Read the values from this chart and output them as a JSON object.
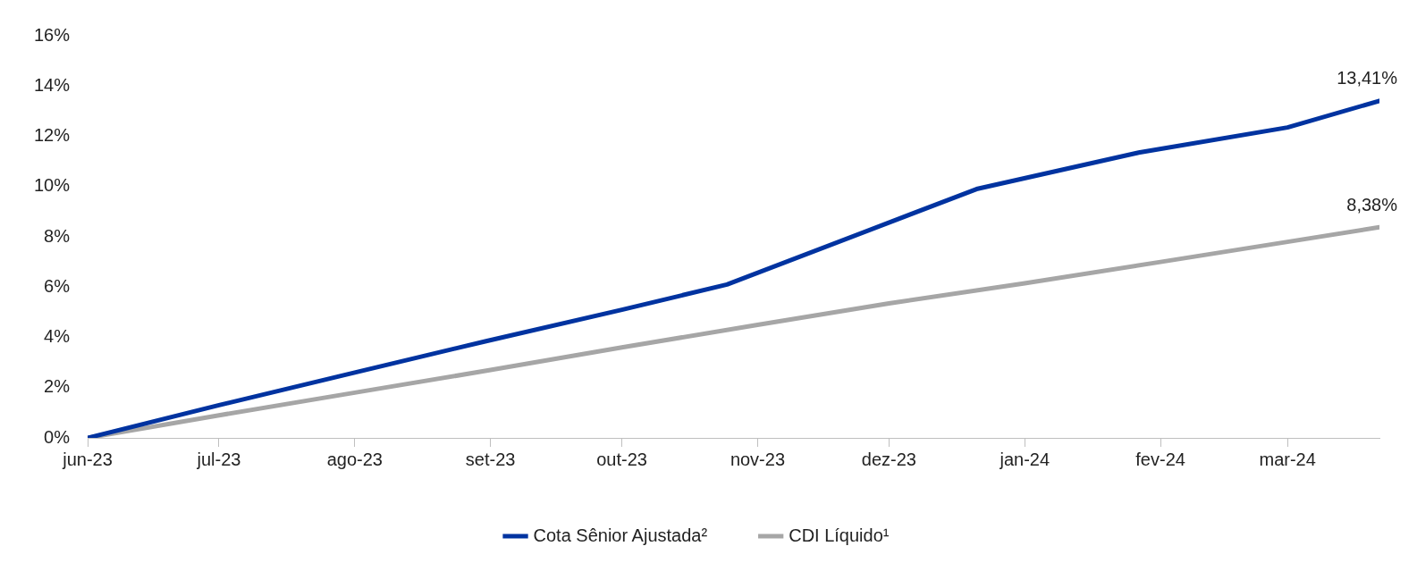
{
  "chart_data": {
    "type": "line",
    "series": [
      {
        "name": "Cota Sênior Ajustada²",
        "color": "#0033a0",
        "x": [
          "2023-06-01",
          "2023-07-01",
          "2023-08-01",
          "2023-08-31",
          "2023-10-01",
          "2023-10-25",
          "2023-12-21",
          "2024-01-27",
          "2024-03-01",
          "2024-03-22"
        ],
        "values": [
          0,
          1.3,
          2.6,
          3.85,
          5.1,
          6.1,
          9.9,
          11.35,
          12.35,
          13.41
        ]
      },
      {
        "name": "CDI Líquido¹",
        "color": "#a6a6a6",
        "x": [
          "2023-06-01",
          "2023-07-01",
          "2023-08-01",
          "2023-09-01",
          "2023-10-01",
          "2023-11-01",
          "2023-12-01",
          "2024-01-01",
          "2024-02-01",
          "2024-03-01",
          "2024-03-22"
        ],
        "values": [
          0,
          0.9,
          1.8,
          2.7,
          3.6,
          4.5,
          5.35,
          6.15,
          7.0,
          7.8,
          8.38
        ]
      }
    ],
    "xlim": [
      "2023-06-01",
      "2024-03-22"
    ],
    "xticks": [
      {
        "value": "2023-06-01",
        "label": "jun-23"
      },
      {
        "value": "2023-07-01",
        "label": "jul-23"
      },
      {
        "value": "2023-08-01",
        "label": "ago-23"
      },
      {
        "value": "2023-09-01",
        "label": "set-23"
      },
      {
        "value": "2023-10-01",
        "label": "out-23"
      },
      {
        "value": "2023-11-01",
        "label": "nov-23"
      },
      {
        "value": "2023-12-01",
        "label": "dez-23"
      },
      {
        "value": "2024-01-01",
        "label": "jan-24"
      },
      {
        "value": "2024-02-01",
        "label": "fev-24"
      },
      {
        "value": "2024-03-01",
        "label": "mar-24"
      }
    ],
    "ylim": [
      0,
      16
    ],
    "yticks": [
      {
        "value": 0,
        "label": "0%"
      },
      {
        "value": 2,
        "label": "2%"
      },
      {
        "value": 4,
        "label": "4%"
      },
      {
        "value": 6,
        "label": "6%"
      },
      {
        "value": 8,
        "label": "8%"
      },
      {
        "value": 10,
        "label": "10%"
      },
      {
        "value": 12,
        "label": "12%"
      },
      {
        "value": 14,
        "label": "14%"
      },
      {
        "value": 16,
        "label": "16%"
      }
    ],
    "annotations": [
      {
        "text": "13,41%",
        "x": "2024-03-22",
        "y": 13.41
      },
      {
        "text": "8,38%",
        "x": "2024-03-22",
        "y": 8.38
      }
    ],
    "grid": false,
    "legend": "bottom",
    "marker": "none",
    "line_style": "solid"
  }
}
